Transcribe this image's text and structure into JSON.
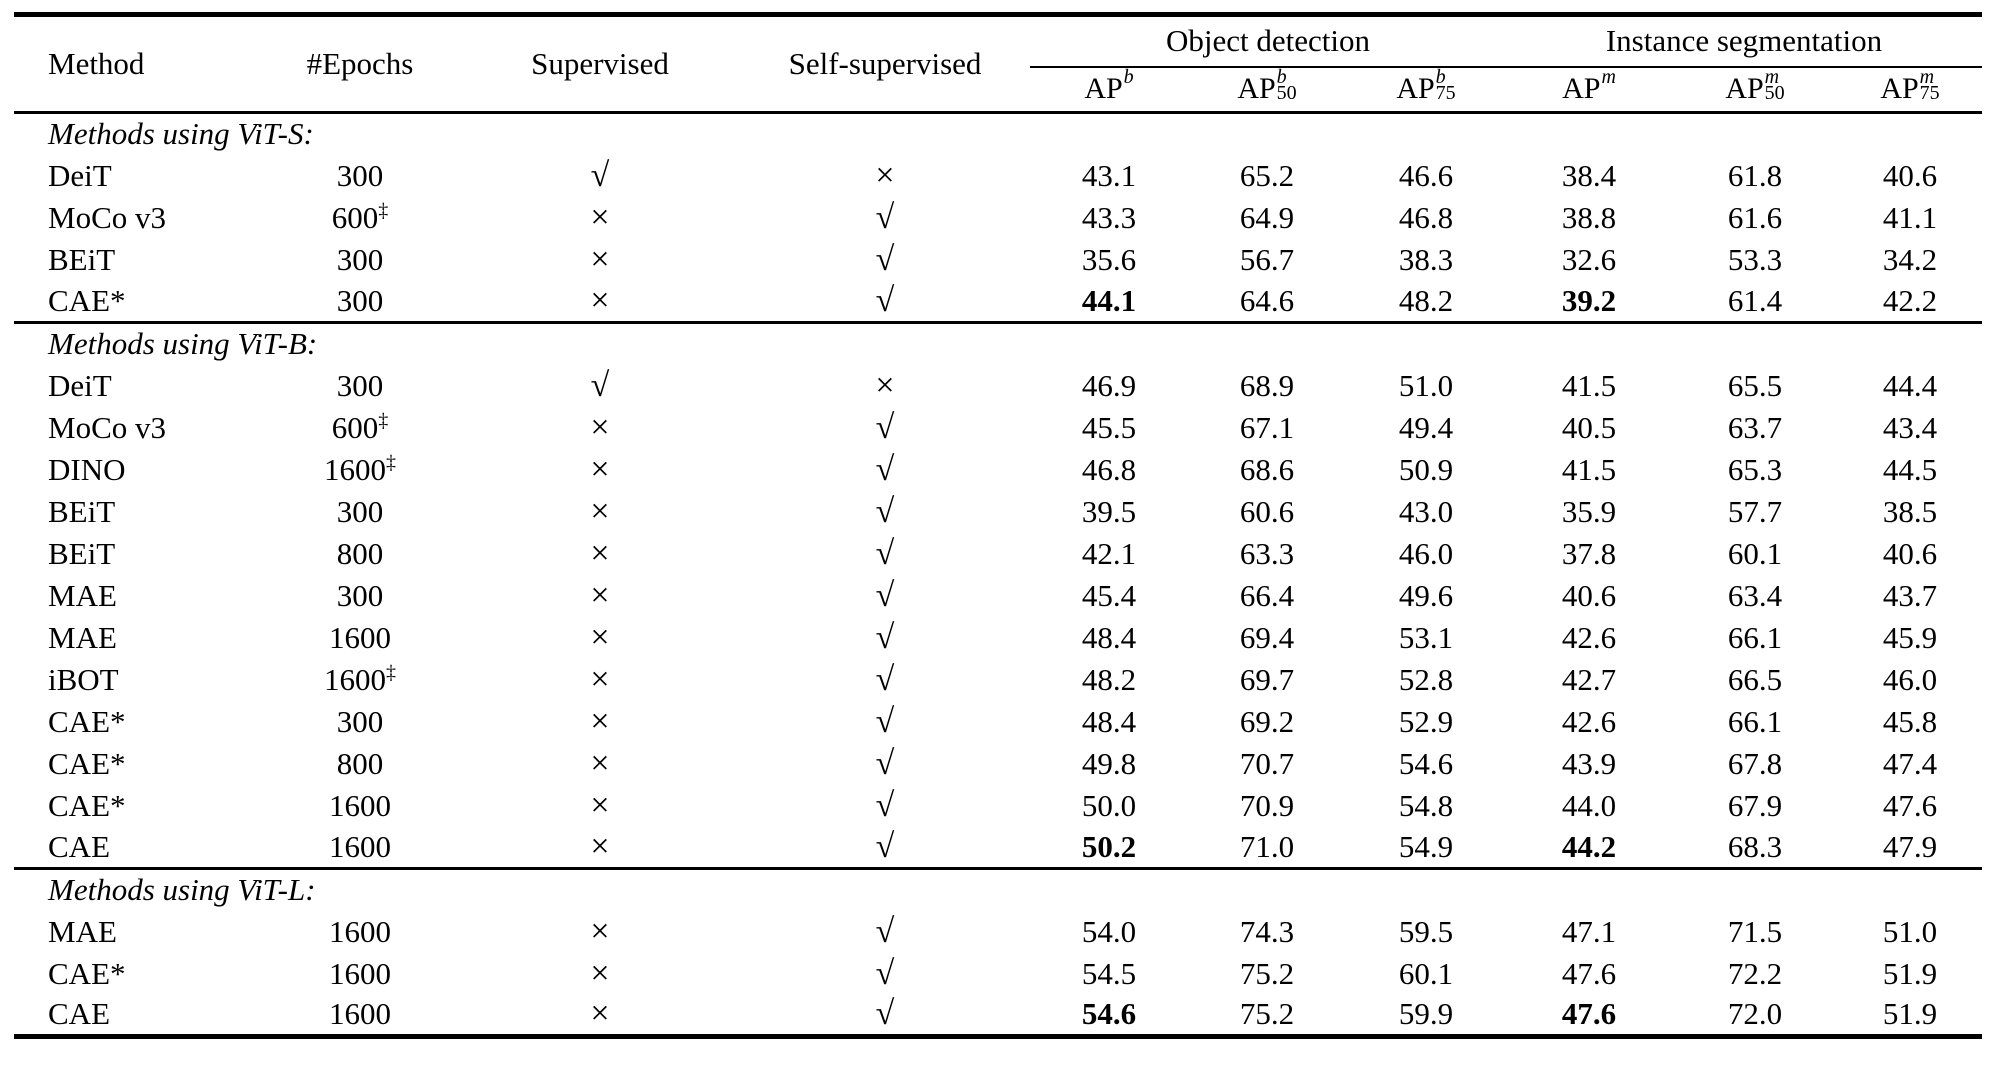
{
  "header": {
    "left_columns": [
      "Method",
      "#Epochs",
      "Supervised",
      "Self-supervised"
    ],
    "groups": [
      {
        "label": "Object detection"
      },
      {
        "label": "Instance segmentation"
      }
    ],
    "metrics": [
      {
        "base": "AP",
        "sup": "b",
        "sub": ""
      },
      {
        "base": "AP",
        "sup": "b",
        "sub": "50"
      },
      {
        "base": "AP",
        "sup": "b",
        "sub": "75"
      },
      {
        "base": "AP",
        "sup": "m",
        "sub": ""
      },
      {
        "base": "AP",
        "sup": "m",
        "sub": "50"
      },
      {
        "base": "AP",
        "sup": "m",
        "sub": "75"
      }
    ]
  },
  "glyphs": {
    "check": "√",
    "cross": "×",
    "dagger": "‡"
  },
  "sections": [
    {
      "header": "Methods using ViT-S:",
      "rows": [
        {
          "method": "DeiT",
          "epochs": "300",
          "dagger": false,
          "supervised": "check",
          "self_supervised": "cross",
          "values": [
            "43.1",
            "65.2",
            "46.6",
            "38.4",
            "61.8",
            "40.6"
          ],
          "bold": []
        },
        {
          "method": "MoCo v3",
          "epochs": "600",
          "dagger": true,
          "supervised": "cross",
          "self_supervised": "check",
          "values": [
            "43.3",
            "64.9",
            "46.8",
            "38.8",
            "61.6",
            "41.1"
          ],
          "bold": []
        },
        {
          "method": "BEiT",
          "epochs": "300",
          "dagger": false,
          "supervised": "cross",
          "self_supervised": "check",
          "values": [
            "35.6",
            "56.7",
            "38.3",
            "32.6",
            "53.3",
            "34.2"
          ],
          "bold": []
        },
        {
          "method": "CAE*",
          "epochs": "300",
          "dagger": false,
          "supervised": "cross",
          "self_supervised": "check",
          "values": [
            "44.1",
            "64.6",
            "48.2",
            "39.2",
            "61.4",
            "42.2"
          ],
          "bold": [
            0,
            3
          ]
        }
      ]
    },
    {
      "header": "Methods using ViT-B:",
      "rows": [
        {
          "method": "DeiT",
          "epochs": "300",
          "dagger": false,
          "supervised": "check",
          "self_supervised": "cross",
          "values": [
            "46.9",
            "68.9",
            "51.0",
            "41.5",
            "65.5",
            "44.4"
          ],
          "bold": []
        },
        {
          "method": "MoCo v3",
          "epochs": "600",
          "dagger": true,
          "supervised": "cross",
          "self_supervised": "check",
          "values": [
            "45.5",
            "67.1",
            "49.4",
            "40.5",
            "63.7",
            "43.4"
          ],
          "bold": []
        },
        {
          "method": "DINO",
          "epochs": "1600",
          "dagger": true,
          "supervised": "cross",
          "self_supervised": "check",
          "values": [
            "46.8",
            "68.6",
            "50.9",
            "41.5",
            "65.3",
            "44.5"
          ],
          "bold": []
        },
        {
          "method": "BEiT",
          "epochs": "300",
          "dagger": false,
          "supervised": "cross",
          "self_supervised": "check",
          "values": [
            "39.5",
            "60.6",
            "43.0",
            "35.9",
            "57.7",
            "38.5"
          ],
          "bold": []
        },
        {
          "method": "BEiT",
          "epochs": "800",
          "dagger": false,
          "supervised": "cross",
          "self_supervised": "check",
          "values": [
            "42.1",
            "63.3",
            "46.0",
            "37.8",
            "60.1",
            "40.6"
          ],
          "bold": []
        },
        {
          "method": "MAE",
          "epochs": "300",
          "dagger": false,
          "supervised": "cross",
          "self_supervised": "check",
          "values": [
            "45.4",
            "66.4",
            "49.6",
            "40.6",
            "63.4",
            "43.7"
          ],
          "bold": []
        },
        {
          "method": "MAE",
          "epochs": "1600",
          "dagger": false,
          "supervised": "cross",
          "self_supervised": "check",
          "values": [
            "48.4",
            "69.4",
            "53.1",
            "42.6",
            "66.1",
            "45.9"
          ],
          "bold": []
        },
        {
          "method": "iBOT",
          "epochs": "1600",
          "dagger": true,
          "supervised": "cross",
          "self_supervised": "check",
          "values": [
            "48.2",
            "69.7",
            "52.8",
            "42.7",
            "66.5",
            "46.0"
          ],
          "bold": []
        },
        {
          "method": "CAE*",
          "epochs": "300",
          "dagger": false,
          "supervised": "cross",
          "self_supervised": "check",
          "values": [
            "48.4",
            "69.2",
            "52.9",
            "42.6",
            "66.1",
            "45.8"
          ],
          "bold": []
        },
        {
          "method": "CAE*",
          "epochs": "800",
          "dagger": false,
          "supervised": "cross",
          "self_supervised": "check",
          "values": [
            "49.8",
            "70.7",
            "54.6",
            "43.9",
            "67.8",
            "47.4"
          ],
          "bold": []
        },
        {
          "method": "CAE*",
          "epochs": "1600",
          "dagger": false,
          "supervised": "cross",
          "self_supervised": "check",
          "values": [
            "50.0",
            "70.9",
            "54.8",
            "44.0",
            "67.9",
            "47.6"
          ],
          "bold": []
        },
        {
          "method": "CAE",
          "epochs": "1600",
          "dagger": false,
          "supervised": "cross",
          "self_supervised": "check",
          "values": [
            "50.2",
            "71.0",
            "54.9",
            "44.2",
            "68.3",
            "47.9"
          ],
          "bold": [
            0,
            3
          ]
        }
      ]
    },
    {
      "header": "Methods using ViT-L:",
      "rows": [
        {
          "method": "MAE",
          "epochs": "1600",
          "dagger": false,
          "supervised": "cross",
          "self_supervised": "check",
          "values": [
            "54.0",
            "74.3",
            "59.5",
            "47.1",
            "71.5",
            "51.0"
          ],
          "bold": []
        },
        {
          "method": "CAE*",
          "epochs": "1600",
          "dagger": false,
          "supervised": "cross",
          "self_supervised": "check",
          "values": [
            "54.5",
            "75.2",
            "60.1",
            "47.6",
            "72.2",
            "51.9"
          ],
          "bold": []
        },
        {
          "method": "CAE",
          "epochs": "1600",
          "dagger": false,
          "supervised": "cross",
          "self_supervised": "check",
          "values": [
            "54.6",
            "75.2",
            "59.9",
            "47.6",
            "72.0",
            "51.9"
          ],
          "bold": [
            0,
            3
          ]
        }
      ]
    }
  ]
}
